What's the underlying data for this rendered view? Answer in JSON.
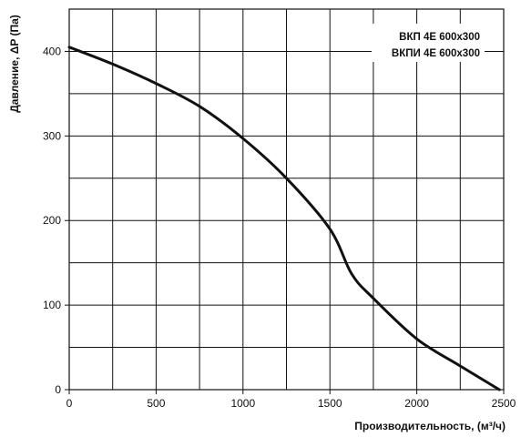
{
  "chart_data": {
    "type": "line",
    "xlabel": "Производительность, (м³/ч)",
    "ylabel": "Давление, ΔP (Па)",
    "xlim": [
      0,
      2500
    ],
    "ylim": [
      0,
      450
    ],
    "x_ticks": [
      0,
      500,
      1000,
      1500,
      2000,
      2500
    ],
    "y_ticks": [
      0,
      100,
      200,
      300,
      400
    ],
    "grid": true,
    "legend_position": "top-right",
    "legend": [
      "ВКП 4Е 600х300",
      "ВКПИ 4Е 600х300"
    ],
    "series": [
      {
        "x": [
          0,
          250,
          500,
          750,
          1000,
          1250,
          1500,
          1625,
          1750,
          2000,
          2250,
          2475
        ],
        "y": [
          405,
          385,
          362,
          335,
          297,
          250,
          190,
          137,
          108,
          60,
          28,
          0
        ]
      }
    ]
  }
}
